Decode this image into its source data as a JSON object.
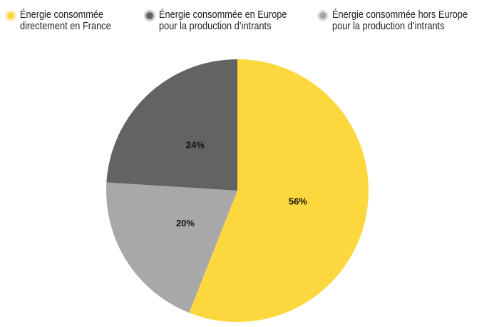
{
  "chart_data": {
    "type": "pie",
    "categories": [
      "Énergie consommée directement en France",
      "Énergie consommée en Europe pour la production d’intrants",
      "Énergie consommée hors Europe pour la production d’intrants"
    ],
    "values": [
      56,
      24,
      20
    ],
    "value_labels": [
      "56%",
      "24%",
      "20%"
    ],
    "colors": [
      "#fdd73e",
      "#636363",
      "#a8a8a8"
    ],
    "slice_order": [
      0,
      2,
      1
    ]
  }
}
